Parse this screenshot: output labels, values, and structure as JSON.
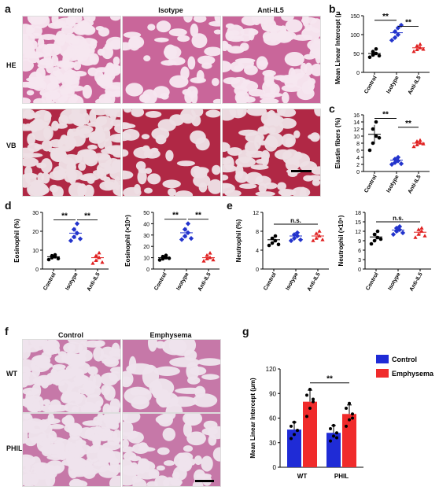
{
  "panel_labels": {
    "a": "a",
    "b": "b",
    "c": "c",
    "d": "d",
    "e": "e",
    "f": "f",
    "g": "g"
  },
  "panel_a": {
    "columns": [
      "Control",
      "Isotype",
      "Anti-IL5"
    ],
    "rows": [
      "HE",
      "VB"
    ],
    "colors": {
      "he": "#c9669a",
      "vb": "#b02845",
      "he_bg": "#f6e6ef",
      "vb_bg": "#eddfe4"
    }
  },
  "panel_f": {
    "columns": [
      "Control",
      "Emphysema"
    ],
    "rows": [
      "WT",
      "PHIL"
    ],
    "colors": {
      "tissue": "#c678a8",
      "bg": "#eee3ec"
    }
  },
  "chart_data": [
    {
      "id": "b",
      "type": "scatter",
      "ylabel": "Mean Linear Intercept (μm)",
      "ylim": [
        0,
        150
      ],
      "yticks": [
        0,
        50,
        100,
        150
      ],
      "categories": [
        "Control",
        "Isotype",
        "Anti-IL5"
      ],
      "colors": [
        "#000000",
        "#2233cc",
        "#e02020"
      ],
      "points": [
        [
          40,
          46,
          50,
          55,
          62,
          44
        ],
        [
          85,
          92,
          100,
          108,
          118,
          125
        ],
        [
          55,
          60,
          65,
          70,
          74,
          61
        ]
      ],
      "means": [
        50,
        105,
        65
      ],
      "sig": [
        {
          "from": 0,
          "to": 1,
          "label": "**",
          "y": 138
        },
        {
          "from": 1,
          "to": 2,
          "label": "**",
          "y": 122
        }
      ]
    },
    {
      "id": "c",
      "type": "scatter",
      "ylabel": "Elastin fibers (%)",
      "ylim": [
        0,
        16
      ],
      "yticks": [
        0,
        2,
        4,
        6,
        8,
        10,
        12,
        14,
        16
      ],
      "categories": [
        "Control",
        "Isotype",
        "Anti-IL5"
      ],
      "colors": [
        "#000000",
        "#2233cc",
        "#e02020"
      ],
      "points": [
        [
          6,
          8,
          10,
          12,
          14,
          9.5
        ],
        [
          2,
          2.5,
          3,
          3.5,
          4,
          2.2
        ],
        [
          7,
          7.5,
          8,
          8.5,
          8.8,
          7.8
        ]
      ],
      "means": [
        10.5,
        3.2,
        8.0
      ],
      "sig": [
        {
          "from": 0,
          "to": 1,
          "label": "**",
          "y": 15
        },
        {
          "from": 1,
          "to": 2,
          "label": "**",
          "y": 12.5
        }
      ]
    },
    {
      "id": "d1",
      "type": "scatter",
      "ylabel": "Eosinophil (%)",
      "ylim": [
        0,
        30
      ],
      "yticks": [
        0,
        10,
        20,
        30
      ],
      "categories": [
        "Control",
        "Isotype",
        "Anti-IL5"
      ],
      "colors": [
        "#000000",
        "#2233cc",
        "#e02020"
      ],
      "points": [
        [
          5,
          6,
          6.5,
          7,
          7.5,
          5.5
        ],
        [
          15,
          17,
          19,
          21,
          24,
          16
        ],
        [
          3,
          4.5,
          6,
          7,
          8.5,
          3.5
        ]
      ],
      "means": [
        6.5,
        19,
        6
      ],
      "sig": [
        {
          "from": 0,
          "to": 1,
          "label": "**",
          "y": 26
        },
        {
          "from": 1,
          "to": 2,
          "label": "**",
          "y": 26
        }
      ]
    },
    {
      "id": "d2",
      "type": "scatter",
      "ylabel": "Eosinophil (×10⁵)",
      "ylim": [
        0,
        50
      ],
      "yticks": [
        0,
        10,
        20,
        30,
        40,
        50
      ],
      "categories": [
        "Control",
        "Isotype",
        "Anti-IL5"
      ],
      "colors": [
        "#000000",
        "#2233cc",
        "#e02020"
      ],
      "points": [
        [
          8,
          9,
          10,
          11,
          12,
          9.5
        ],
        [
          26,
          29,
          32,
          35,
          40,
          27
        ],
        [
          7,
          9,
          10,
          12,
          14,
          8
        ]
      ],
      "means": [
        10,
        32,
        10
      ],
      "sig": [
        {
          "from": 0,
          "to": 1,
          "label": "**",
          "y": 44
        },
        {
          "from": 1,
          "to": 2,
          "label": "**",
          "y": 44
        }
      ]
    },
    {
      "id": "e1",
      "type": "scatter",
      "ylabel": "Neutrophil (%)",
      "ylim": [
        0,
        12
      ],
      "yticks": [
        0,
        4,
        8,
        12
      ],
      "categories": [
        "Control",
        "Isotype",
        "Anti-IL5"
      ],
      "colors": [
        "#000000",
        "#2233cc",
        "#e02020"
      ],
      "points": [
        [
          5,
          5.5,
          6,
          6.5,
          7,
          5.2
        ],
        [
          6,
          6.5,
          7,
          7.3,
          7.7,
          6.2
        ],
        [
          6,
          6.5,
          7,
          7.5,
          8,
          6.2
        ]
      ],
      "means": [
        6.2,
        7,
        7
      ],
      "sig": [
        {
          "from": 0,
          "to": 2,
          "label": "n.s.",
          "y": 9.5
        }
      ]
    },
    {
      "id": "e2",
      "type": "scatter",
      "ylabel": "Neutrophil (×10⁵)",
      "ylim": [
        0,
        18
      ],
      "yticks": [
        0,
        3,
        6,
        9,
        12,
        15,
        18
      ],
      "categories": [
        "Control",
        "Isotype",
        "Anti-IL5"
      ],
      "colors": [
        "#000000",
        "#2233cc",
        "#e02020"
      ],
      "points": [
        [
          8,
          9,
          10,
          11,
          12,
          9.5
        ],
        [
          11,
          12,
          12.5,
          13,
          13.5,
          11.5
        ],
        [
          10,
          11,
          12,
          12.5,
          13,
          10.5
        ]
      ],
      "means": [
        10.2,
        12.4,
        11.7
      ],
      "sig": [
        {
          "from": 0,
          "to": 2,
          "label": "n.s.",
          "y": 15
        }
      ]
    },
    {
      "id": "g",
      "type": "bar",
      "ylabel": "Mean Linear Intercept (μm)",
      "ylim": [
        0,
        120
      ],
      "yticks": [
        0,
        30,
        60,
        90,
        120
      ],
      "categories": [
        "WT",
        "PHIL"
      ],
      "series": [
        {
          "name": "Control",
          "color": "#1f2bd6",
          "values": [
            46,
            42
          ],
          "errors": [
            9,
            9
          ],
          "points": [
            [
              35,
              40,
              45,
              50,
              55,
              45
            ],
            [
              32,
              38,
              42,
              47,
              51,
              36
            ]
          ]
        },
        {
          "name": "Emphysema",
          "color": "#f02b2b",
          "values": [
            80,
            65
          ],
          "errors": [
            14,
            11
          ],
          "points": [
            [
              62,
              72,
              80,
              88,
              95,
              83
            ],
            [
              50,
              58,
              65,
              72,
              78,
              60
            ]
          ]
        }
      ],
      "sig": [
        {
          "label": "**",
          "y": 103
        }
      ]
    }
  ]
}
